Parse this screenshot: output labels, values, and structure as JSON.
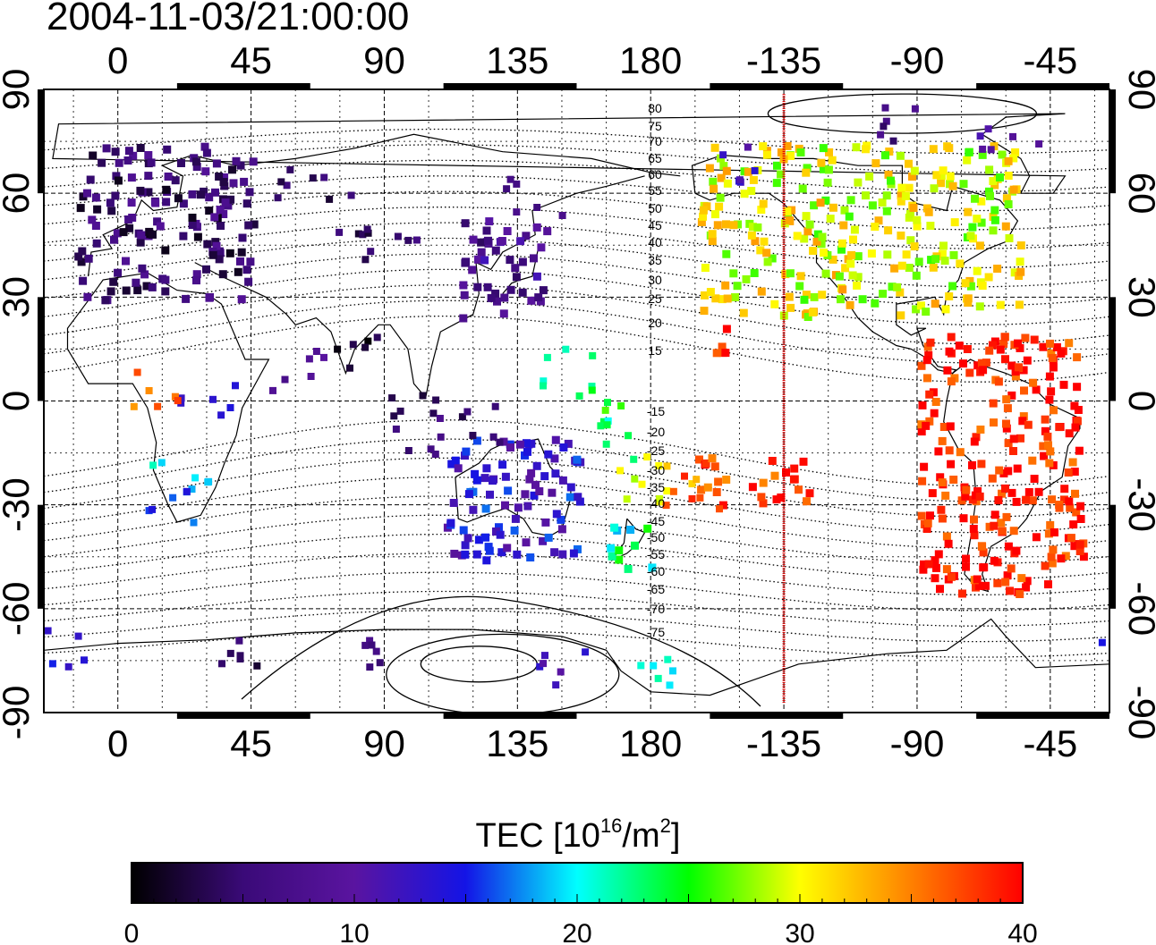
{
  "title": "2004-11-03/21:00:00",
  "map": {
    "lon_ticks": [
      "0",
      "45",
      "90",
      "135",
      "180",
      "-135",
      "-90",
      "-45"
    ],
    "lat_ticks": [
      "90",
      "60",
      "30",
      "0",
      "-30",
      "-60",
      "-90"
    ],
    "lon_range": [
      -25,
      335
    ],
    "lat_range": [
      -90,
      90
    ],
    "grid": true,
    "terminator_longitude": -135,
    "terminator_color": "#e00000",
    "contour_labels_north": [
      "80",
      "75",
      "70",
      "65",
      "60",
      "55",
      "50",
      "45",
      "40",
      "35",
      "30",
      "25",
      "20",
      "15"
    ],
    "contour_labels_south": [
      "-15",
      "-20",
      "-25",
      "-30",
      "-35",
      "-40",
      "-45",
      "-50",
      "-55",
      "-60",
      "-65",
      "-70",
      "-75"
    ]
  },
  "colorbar": {
    "title": "TEC  [10",
    "title_sup": "16",
    "title_mid": "/m",
    "title_sup2": "2",
    "title_end": "]",
    "tick_labels": [
      "0",
      "10",
      "20",
      "30",
      "40"
    ],
    "min": 0,
    "max": 40,
    "colors": [
      "#000000",
      "#3a0a78",
      "#5a14a0",
      "#1414e6",
      "#00ffff",
      "#00ff00",
      "#ffff00",
      "#ff8000",
      "#ff0000"
    ]
  },
  "chart_data": {
    "type": "heatmap",
    "title": "2004-11-03/21:00:00",
    "xlabel": "",
    "ylabel": "",
    "x_ticks": [
      0,
      45,
      90,
      135,
      180,
      -135,
      -90,
      -45
    ],
    "y_ticks": [
      90,
      60,
      30,
      0,
      -30,
      -60,
      -90
    ],
    "value_label": "TEC  [10^16/m^2]",
    "value_range": [
      0,
      40
    ],
    "regions": [
      {
        "lon": [
          -15,
          45
        ],
        "lat": [
          30,
          75
        ],
        "tec": 5
      },
      {
        "lon": [
          115,
          145
        ],
        "lat": [
          25,
          55
        ],
        "tec": 8
      },
      {
        "lon": [
          -165,
          -55
        ],
        "lat": [
          25,
          75
        ],
        "tec": 30
      },
      {
        "lon": [
          -90,
          -35
        ],
        "lat": [
          -55,
          20
        ],
        "tec": 39
      },
      {
        "lon": [
          110,
          155
        ],
        "lat": [
          -45,
          -10
        ],
        "tec": 13
      },
      {
        "lon": [
          165,
          180
        ],
        "lat": [
          -50,
          -35
        ],
        "tec": 22
      },
      {
        "lon": [
          -165,
          -125
        ],
        "lat": [
          -30,
          -15
        ],
        "tec": 38
      },
      {
        "lon": [
          -160,
          -150
        ],
        "lat": [
          15,
          25
        ],
        "tec": 39
      }
    ]
  }
}
